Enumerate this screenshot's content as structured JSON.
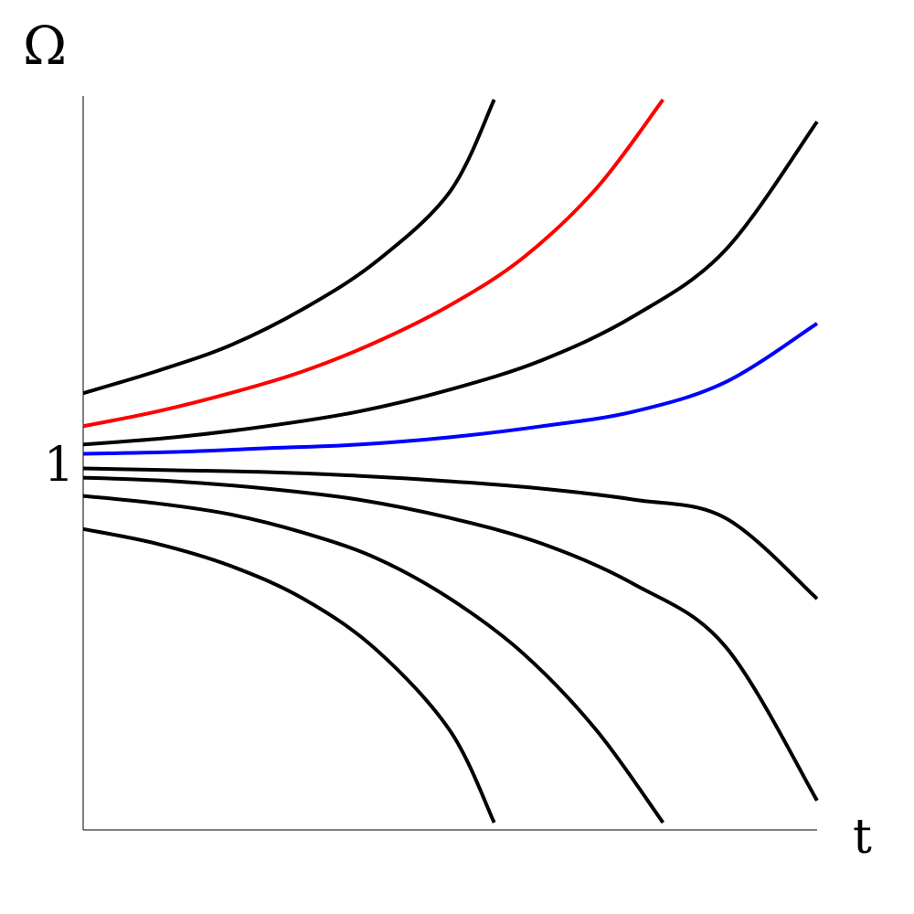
{
  "chart_data": {
    "type": "line",
    "title": "",
    "xlabel": "t",
    "ylabel": "Ω",
    "y_tick_label": "1",
    "y_tick_value": 1,
    "xlim": [
      0,
      1
    ],
    "ylim": [
      0,
      2
    ],
    "grid": false,
    "legend": "none",
    "series": [
      {
        "color": "#000000",
        "x": [
          0,
          0.1,
          0.2,
          0.3,
          0.4,
          0.5,
          0.56
        ],
        "y": [
          1.19,
          1.25,
          1.32,
          1.42,
          1.55,
          1.74,
          1.99
        ]
      },
      {
        "color": "#ff0000",
        "x": [
          0,
          0.1,
          0.2,
          0.3,
          0.4,
          0.5,
          0.6,
          0.7,
          0.79
        ],
        "y": [
          1.1,
          1.14,
          1.19,
          1.25,
          1.33,
          1.43,
          1.56,
          1.75,
          1.99
        ]
      },
      {
        "color": "#000000",
        "x": [
          0,
          0.125,
          0.25,
          0.375,
          0.5,
          0.625,
          0.75,
          0.875,
          1.0
        ],
        "y": [
          1.05,
          1.07,
          1.1,
          1.14,
          1.2,
          1.28,
          1.4,
          1.58,
          1.93
        ]
      },
      {
        "color": "#0000ff",
        "x": [
          0,
          0.125,
          0.25,
          0.375,
          0.5,
          0.625,
          0.75,
          0.875,
          1.0
        ],
        "y": [
          1.025,
          1.03,
          1.04,
          1.05,
          1.07,
          1.1,
          1.14,
          1.22,
          1.38
        ]
      },
      {
        "color": "#000000",
        "x": [
          0,
          0.125,
          0.25,
          0.375,
          0.5,
          0.625,
          0.75,
          0.875,
          1.0
        ],
        "y": [
          0.985,
          0.98,
          0.975,
          0.965,
          0.95,
          0.93,
          0.9,
          0.85,
          0.63
        ]
      },
      {
        "color": "#000000",
        "x": [
          0,
          0.125,
          0.25,
          0.375,
          0.5,
          0.625,
          0.75,
          0.875,
          1.0
        ],
        "y": [
          0.96,
          0.95,
          0.93,
          0.9,
          0.85,
          0.78,
          0.67,
          0.5,
          0.08
        ]
      },
      {
        "color": "#000000",
        "x": [
          0,
          0.1,
          0.2,
          0.3,
          0.4,
          0.5,
          0.6,
          0.7,
          0.79
        ],
        "y": [
          0.91,
          0.89,
          0.86,
          0.81,
          0.74,
          0.63,
          0.48,
          0.27,
          0.02
        ]
      },
      {
        "color": "#000000",
        "x": [
          0,
          0.1,
          0.2,
          0.3,
          0.4,
          0.5,
          0.56
        ],
        "y": [
          0.82,
          0.78,
          0.72,
          0.63,
          0.49,
          0.27,
          0.02
        ]
      }
    ]
  }
}
